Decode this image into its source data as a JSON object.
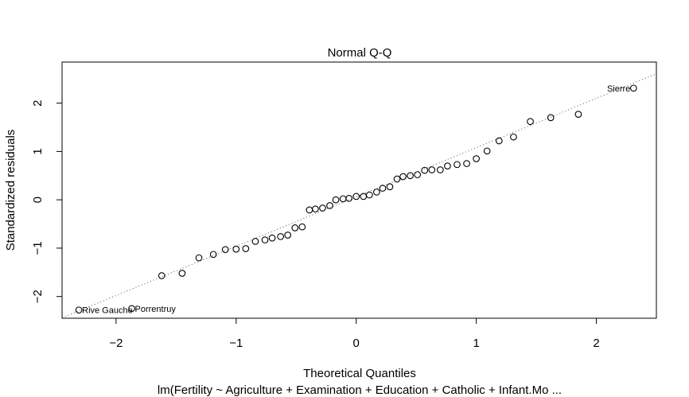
{
  "chart_data": {
    "type": "scatter",
    "title": "Normal Q-Q",
    "xlabel": "Theoretical Quantiles",
    "ylabel": "Standardized residuals",
    "subtitle": "lm(Fertility ~ Agriculture + Examination + Education + Catholic + Infant.Mo ...",
    "xlim": [
      -2.45,
      2.5
    ],
    "ylim": [
      -2.45,
      2.85
    ],
    "x_ticks": [
      -2,
      -1,
      0,
      1,
      2
    ],
    "y_ticks": [
      -2,
      -1,
      0,
      1,
      2
    ],
    "grid": false,
    "reference_line": {
      "style": "dotted",
      "intercept": 0.06,
      "slope": 1.02
    },
    "points": [
      {
        "x": -2.31,
        "y": -2.28,
        "label": "Rive Gauche"
      },
      {
        "x": -1.87,
        "y": -2.25,
        "label": "Porrentruy"
      },
      {
        "x": -1.62,
        "y": -1.57
      },
      {
        "x": -1.45,
        "y": -1.52
      },
      {
        "x": -1.31,
        "y": -1.2
      },
      {
        "x": -1.19,
        "y": -1.13
      },
      {
        "x": -1.09,
        "y": -1.03
      },
      {
        "x": -1.0,
        "y": -1.02
      },
      {
        "x": -0.92,
        "y": -1.01
      },
      {
        "x": -0.84,
        "y": -0.86
      },
      {
        "x": -0.76,
        "y": -0.83
      },
      {
        "x": -0.7,
        "y": -0.79
      },
      {
        "x": -0.63,
        "y": -0.76
      },
      {
        "x": -0.57,
        "y": -0.73
      },
      {
        "x": -0.51,
        "y": -0.58
      },
      {
        "x": -0.45,
        "y": -0.56
      },
      {
        "x": -0.39,
        "y": -0.21
      },
      {
        "x": -0.34,
        "y": -0.19
      },
      {
        "x": -0.28,
        "y": -0.17
      },
      {
        "x": -0.22,
        "y": -0.12
      },
      {
        "x": -0.17,
        "y": 0.0
      },
      {
        "x": -0.11,
        "y": 0.02
      },
      {
        "x": -0.06,
        "y": 0.03
      },
      {
        "x": 0.0,
        "y": 0.07
      },
      {
        "x": 0.06,
        "y": 0.07
      },
      {
        "x": 0.11,
        "y": 0.1
      },
      {
        "x": 0.17,
        "y": 0.16
      },
      {
        "x": 0.22,
        "y": 0.24
      },
      {
        "x": 0.28,
        "y": 0.27
      },
      {
        "x": 0.34,
        "y": 0.43
      },
      {
        "x": 0.39,
        "y": 0.48
      },
      {
        "x": 0.45,
        "y": 0.5
      },
      {
        "x": 0.51,
        "y": 0.52
      },
      {
        "x": 0.57,
        "y": 0.61
      },
      {
        "x": 0.63,
        "y": 0.62
      },
      {
        "x": 0.7,
        "y": 0.62
      },
      {
        "x": 0.76,
        "y": 0.7
      },
      {
        "x": 0.84,
        "y": 0.73
      },
      {
        "x": 0.92,
        "y": 0.75
      },
      {
        "x": 1.0,
        "y": 0.85
      },
      {
        "x": 1.09,
        "y": 1.01
      },
      {
        "x": 1.19,
        "y": 1.22
      },
      {
        "x": 1.31,
        "y": 1.3
      },
      {
        "x": 1.45,
        "y": 1.62
      },
      {
        "x": 1.62,
        "y": 1.7
      },
      {
        "x": 1.85,
        "y": 1.77
      },
      {
        "x": 2.31,
        "y": 2.31,
        "label": "Sierre"
      }
    ]
  }
}
